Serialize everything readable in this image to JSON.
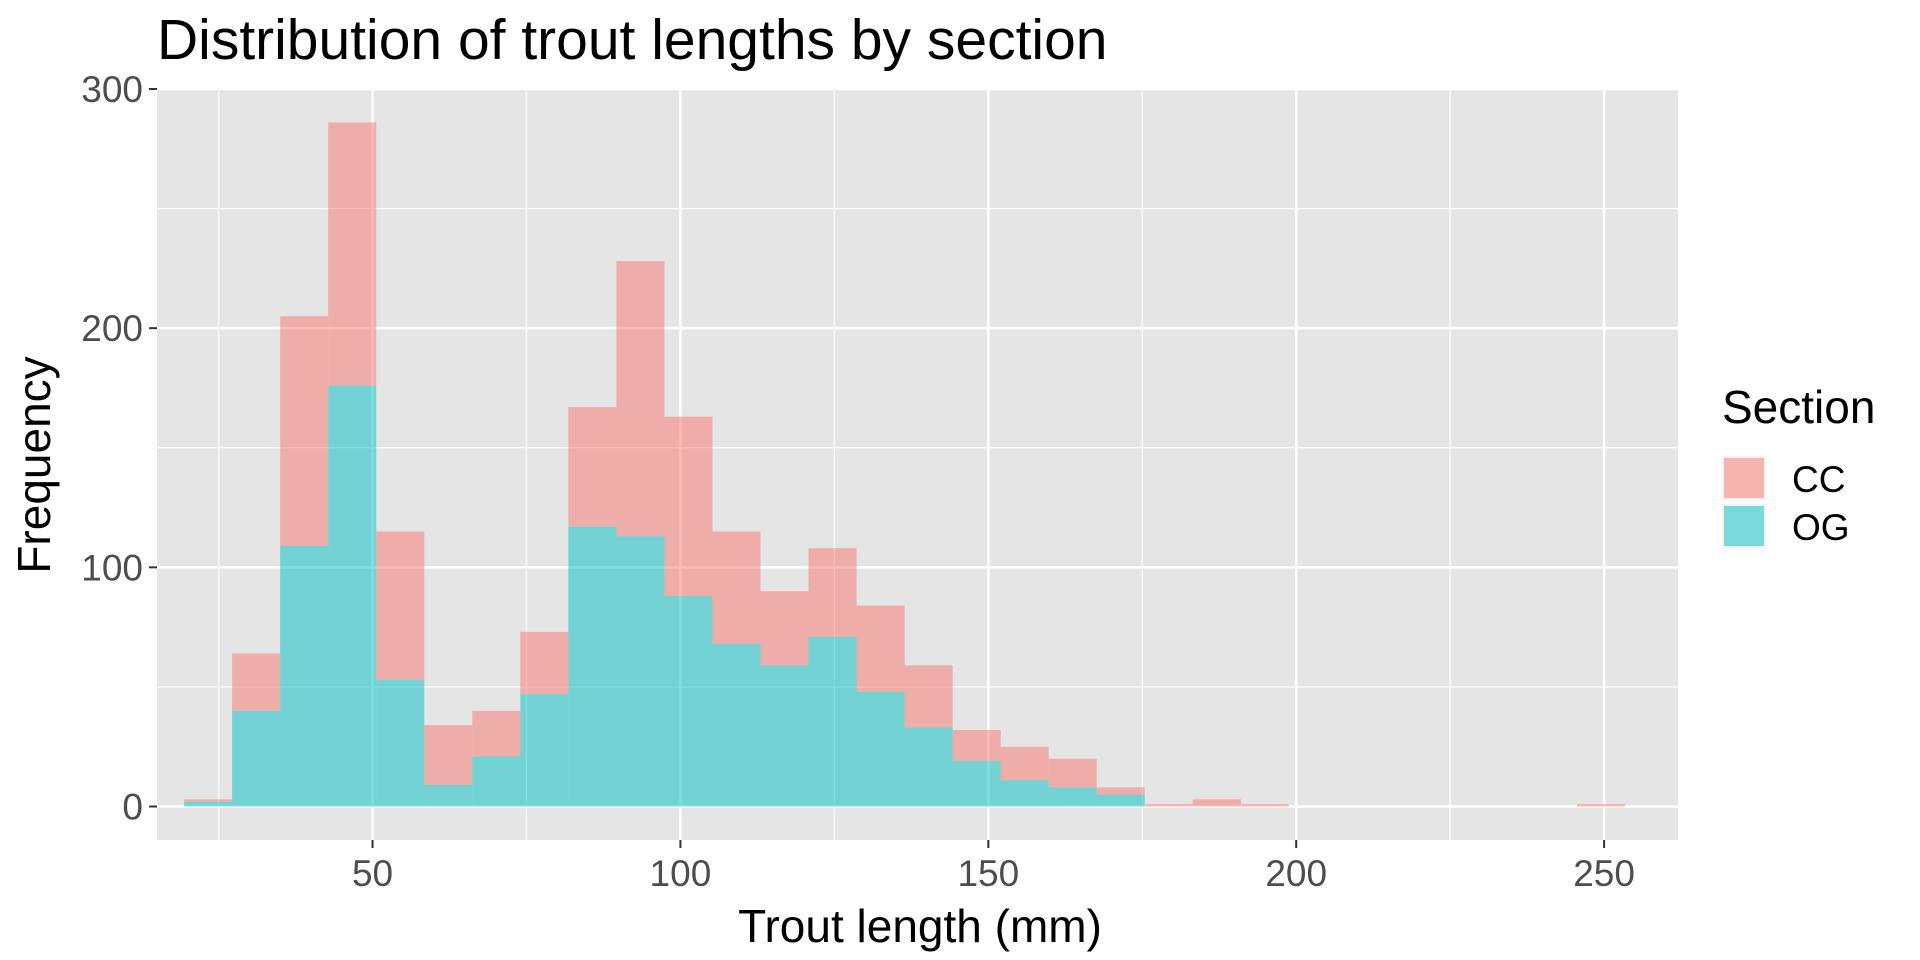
{
  "chart_data": {
    "type": "bar",
    "title": "Distribution of trout lengths by section",
    "xlabel": "Trout length (mm)",
    "ylabel": "Frequency",
    "xlim": [
      15,
      262
    ],
    "ylim": [
      -14,
      300
    ],
    "xticks": [
      50,
      100,
      150,
      200,
      250
    ],
    "yticks": [
      0,
      100,
      200,
      300
    ],
    "bin_width": 7.8,
    "bin_centers": [
      23.3,
      31.1,
      38.9,
      46.7,
      54.5,
      62.3,
      70.1,
      77.9,
      85.7,
      93.5,
      101.3,
      109.1,
      116.9,
      124.7,
      132.5,
      140.3,
      148.1,
      155.9,
      163.7,
      171.5,
      179.3,
      187.1,
      194.9,
      249.5
    ],
    "series": [
      {
        "name": "CC",
        "color": "#F8766D",
        "values": [
          1,
          24,
          96,
          110,
          62,
          25,
          19,
          26,
          50,
          115,
          75,
          47,
          31,
          37,
          36,
          26,
          13,
          14,
          12,
          3,
          1,
          3,
          1,
          1
        ]
      },
      {
        "name": "OG",
        "color": "#00BFC4",
        "values": [
          2,
          40,
          109,
          176,
          53,
          9,
          21,
          47,
          117,
          113,
          88,
          68,
          59,
          71,
          48,
          33,
          19,
          11,
          8,
          5,
          0,
          0,
          0,
          0
        ]
      }
    ],
    "stacked": true,
    "legend": {
      "title": "Section",
      "position": "right",
      "entries": [
        "CC",
        "OG"
      ]
    },
    "grid": true,
    "panel_background": "#E5E5E5",
    "grid_color": "#FFFFFF"
  }
}
